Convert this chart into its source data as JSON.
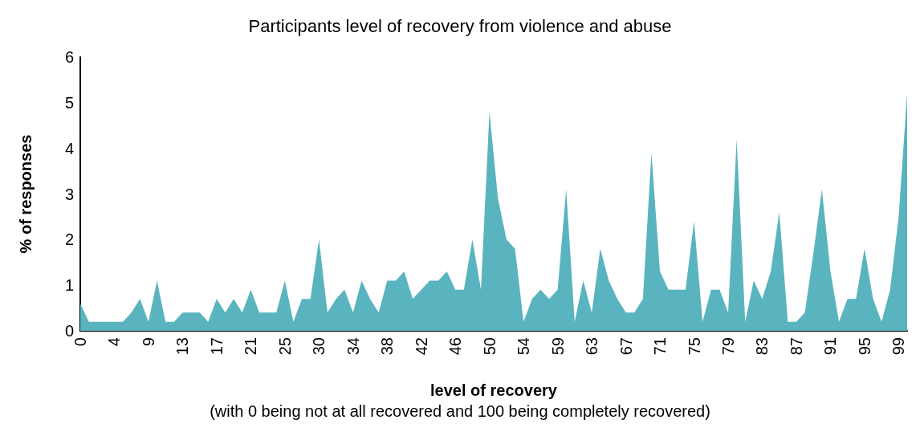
{
  "chart_data": {
    "type": "area",
    "title": "Participants level of recovery from violence and abuse",
    "xlabel": "level of recovery",
    "ylabel": "% of responses",
    "annotations": [
      "(with 0 being not at all recovered and 100 being completely recovered)"
    ],
    "categories": [
      "0",
      null,
      null,
      null,
      "4",
      null,
      null,
      null,
      "9",
      null,
      null,
      null,
      "13",
      null,
      null,
      null,
      "17",
      null,
      null,
      null,
      "21",
      null,
      null,
      null,
      "25",
      null,
      null,
      null,
      "30",
      null,
      null,
      null,
      "34",
      null,
      null,
      null,
      "38",
      null,
      null,
      null,
      "42",
      null,
      null,
      null,
      "46",
      null,
      null,
      null,
      "50",
      null,
      null,
      null,
      "54",
      null,
      null,
      null,
      "59",
      null,
      null,
      null,
      "63",
      null,
      null,
      null,
      "67",
      null,
      null,
      null,
      "71",
      null,
      null,
      null,
      "75",
      null,
      null,
      null,
      "79",
      null,
      null,
      null,
      "83",
      null,
      null,
      null,
      "87",
      null,
      null,
      null,
      "91",
      null,
      null,
      null,
      "95",
      null,
      null,
      null,
      "99",
      null
    ],
    "series": [
      {
        "color": "#5ab4bf",
        "values": [
          0.6,
          0.2,
          0.2,
          0.2,
          0.2,
          0.2,
          0.4,
          0.7,
          0.2,
          1.1,
          0.2,
          0.2,
          0.4,
          0.4,
          0.4,
          0.2,
          0.7,
          0.4,
          0.7,
          0.4,
          0.9,
          0.4,
          0.4,
          0.4,
          1.1,
          0.2,
          0.7,
          0.7,
          2.0,
          0.4,
          0.7,
          0.9,
          0.4,
          1.1,
          0.7,
          0.4,
          1.1,
          1.1,
          1.3,
          0.7,
          0.9,
          1.1,
          1.1,
          1.3,
          0.9,
          0.9,
          2.0,
          0.9,
          4.8,
          2.9,
          2.0,
          1.8,
          0.2,
          0.7,
          0.9,
          0.7,
          0.9,
          3.1,
          0.2,
          1.1,
          0.4,
          1.8,
          1.1,
          0.7,
          0.4,
          0.4,
          0.7,
          3.9,
          1.3,
          0.9,
          0.9,
          0.9,
          2.4,
          0.2,
          0.9,
          0.9,
          0.4,
          4.2,
          0.2,
          1.1,
          0.7,
          1.3,
          2.6,
          0.2,
          0.2,
          0.4,
          1.7,
          3.1,
          1.3,
          0.2,
          0.7,
          0.7,
          1.8,
          0.7,
          0.2,
          0.9,
          2.5,
          5.2
        ]
      }
    ],
    "ylim": [
      0,
      6
    ],
    "yticks": [
      0,
      1,
      2,
      3,
      4,
      5,
      6
    ]
  }
}
